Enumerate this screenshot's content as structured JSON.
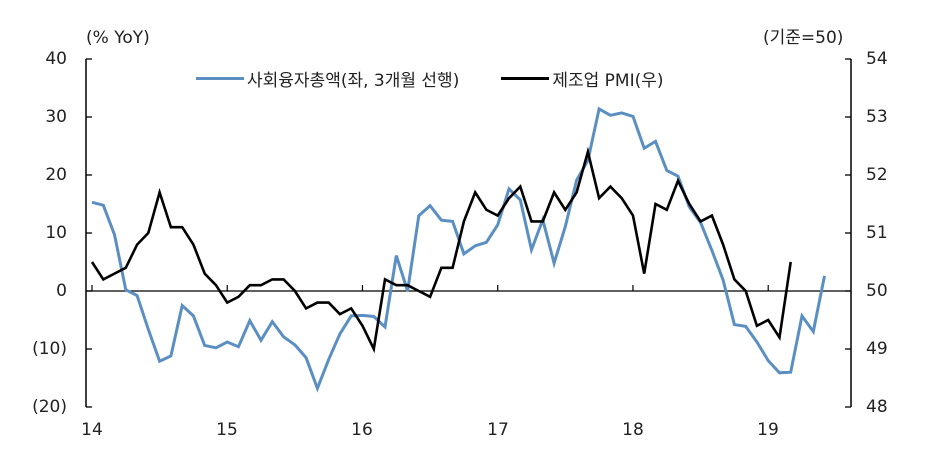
{
  "chart_data": {
    "type": "line",
    "title": "",
    "left_axis": {
      "unit_label": "(% YoY)",
      "ticks": [
        "40",
        "30",
        "20",
        "10",
        "0",
        "(10)",
        "(20)"
      ],
      "range": [
        -20,
        40
      ]
    },
    "right_axis": {
      "unit_label": "(기준=50)",
      "ticks": [
        "54",
        "53",
        "52",
        "51",
        "50",
        "49",
        "48"
      ],
      "range": [
        48,
        54
      ]
    },
    "x_ticks": [
      "14",
      "15",
      "16",
      "17",
      "18",
      "19"
    ],
    "legend": [
      {
        "label": "사회융자총액(좌, 3개월 선행)",
        "color": "#5b8fc2"
      },
      {
        "label": "제조업 PMI(우)",
        "color": "#000000"
      }
    ],
    "series": [
      {
        "name": "사회융자총액(좌, 3개월 선행)",
        "axis": "left",
        "color": "#5b8fc2",
        "start": "2014-01",
        "values": [
          15.3,
          14.8,
          9.7,
          0.2,
          -0.8,
          -6.6,
          -12.1,
          -11.2,
          -2.5,
          -4.3,
          -9.4,
          -9.8,
          -8.8,
          -9.6,
          -5.1,
          -8.5,
          -5.3,
          -7.9,
          -9.3,
          -11.5,
          -16.8,
          -11.8,
          -7.4,
          -4.3,
          -4.2,
          -4.4,
          -6.2,
          6.1,
          0.0,
          13.0,
          14.7,
          12.2,
          12.0,
          6.4,
          7.8,
          8.4,
          11.4,
          17.6,
          15.7,
          7.1,
          12.3,
          4.8,
          11.1,
          19.1,
          22.5,
          31.4,
          30.3,
          30.7,
          30.1,
          24.6,
          25.8,
          20.8,
          19.8,
          14.5,
          11.8,
          7.0,
          1.9,
          -5.8,
          -6.1,
          -8.8,
          -12.0,
          -14.1,
          -14.0,
          -4.3,
          -7.0,
          2.6
        ]
      },
      {
        "name": "제조업 PMI(우)",
        "axis": "right",
        "color": "#000000",
        "start": "2014-01",
        "values": [
          50.5,
          50.2,
          50.3,
          50.4,
          50.8,
          51.0,
          51.7,
          51.1,
          51.1,
          50.8,
          50.3,
          50.1,
          49.8,
          49.9,
          50.1,
          50.1,
          50.2,
          50.2,
          50.0,
          49.7,
          49.8,
          49.8,
          49.6,
          49.7,
          49.4,
          49.0,
          50.2,
          50.1,
          50.1,
          50.0,
          49.9,
          50.4,
          50.4,
          51.2,
          51.7,
          51.4,
          51.3,
          51.6,
          51.8,
          51.2,
          51.2,
          51.7,
          51.4,
          51.7,
          52.4,
          51.6,
          51.8,
          51.6,
          51.3,
          50.3,
          51.5,
          51.4,
          51.9,
          51.5,
          51.2,
          51.3,
          50.8,
          50.2,
          50.0,
          49.4,
          49.5,
          49.2,
          50.5
        ]
      }
    ],
    "grid": false,
    "legend_position": "top-center"
  }
}
